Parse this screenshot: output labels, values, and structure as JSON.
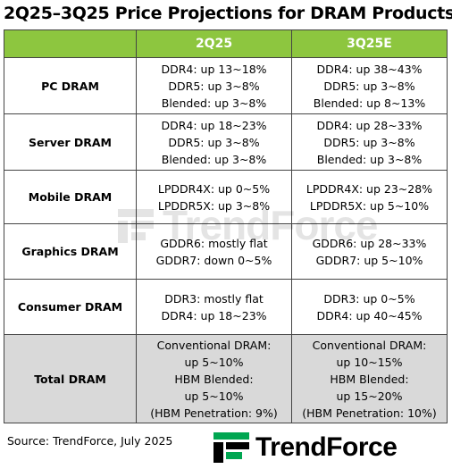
{
  "title": "2Q25–3Q25 Price Projections  for DRAM Products",
  "table": {
    "headers": [
      "",
      "2Q25",
      "3Q25E"
    ],
    "rows": [
      {
        "label": "PC DRAM",
        "q2": [
          "DDR4: up 13~18%",
          "DDR5: up 3~8%",
          "Blended: up 3~8%"
        ],
        "q3": [
          "DDR4: up 38~43%",
          "DDR5: up 3~8%",
          "Blended: up 8~13%"
        ]
      },
      {
        "label": "Server DRAM",
        "q2": [
          "DDR4: up 18~23%",
          "DDR5: up 3~8%",
          "Blended: up 3~8%"
        ],
        "q3": [
          "DDR4: up 28~33%",
          "DDR5: up 3~8%",
          "Blended: up 3~8%"
        ]
      },
      {
        "label": "Mobile DRAM",
        "q2": [
          "LPDDR4X: up 0~5%",
          "LPDDR5X: up 3~8%"
        ],
        "q3": [
          "LPDDR4X: up 23~28%",
          "LPDDR5X: up 5~10%"
        ]
      },
      {
        "label": "Graphics DRAM",
        "q2": [
          "GDDR6: mostly flat",
          "GDDR7: down 0~5%"
        ],
        "q3": [
          "GDDR6: up 28~33%",
          "GDDR7: up 5~10%"
        ]
      },
      {
        "label": "Consumer DRAM",
        "q2": [
          "DDR3: mostly flat",
          "DDR4: up 18~23%"
        ],
        "q3": [
          "DDR3: up 0~5%",
          "DDR4: up 40~45%"
        ]
      },
      {
        "label": "Total DRAM",
        "q2": [
          "Conventional DRAM:",
          "up 5~10%",
          "HBM Blended:",
          "up 5~10%",
          "(HBM Penetration: 9%)"
        ],
        "q3": [
          "Conventional DRAM:",
          "up 10~15%",
          "HBM Blended:",
          "up 15~20%",
          "(HBM Penetration: 10%)"
        ]
      }
    ]
  },
  "watermark": "TrendForce",
  "source": "Source: TrendForce, July 2025",
  "logo": {
    "text": "TrendForce",
    "icon": "trendforce-logo-icon",
    "color": "#00a651"
  },
  "colors": {
    "header_bg": "#8dc63f",
    "header_text": "#ffffff",
    "total_row_bg": "#d9d9d9",
    "border": "#444444"
  }
}
